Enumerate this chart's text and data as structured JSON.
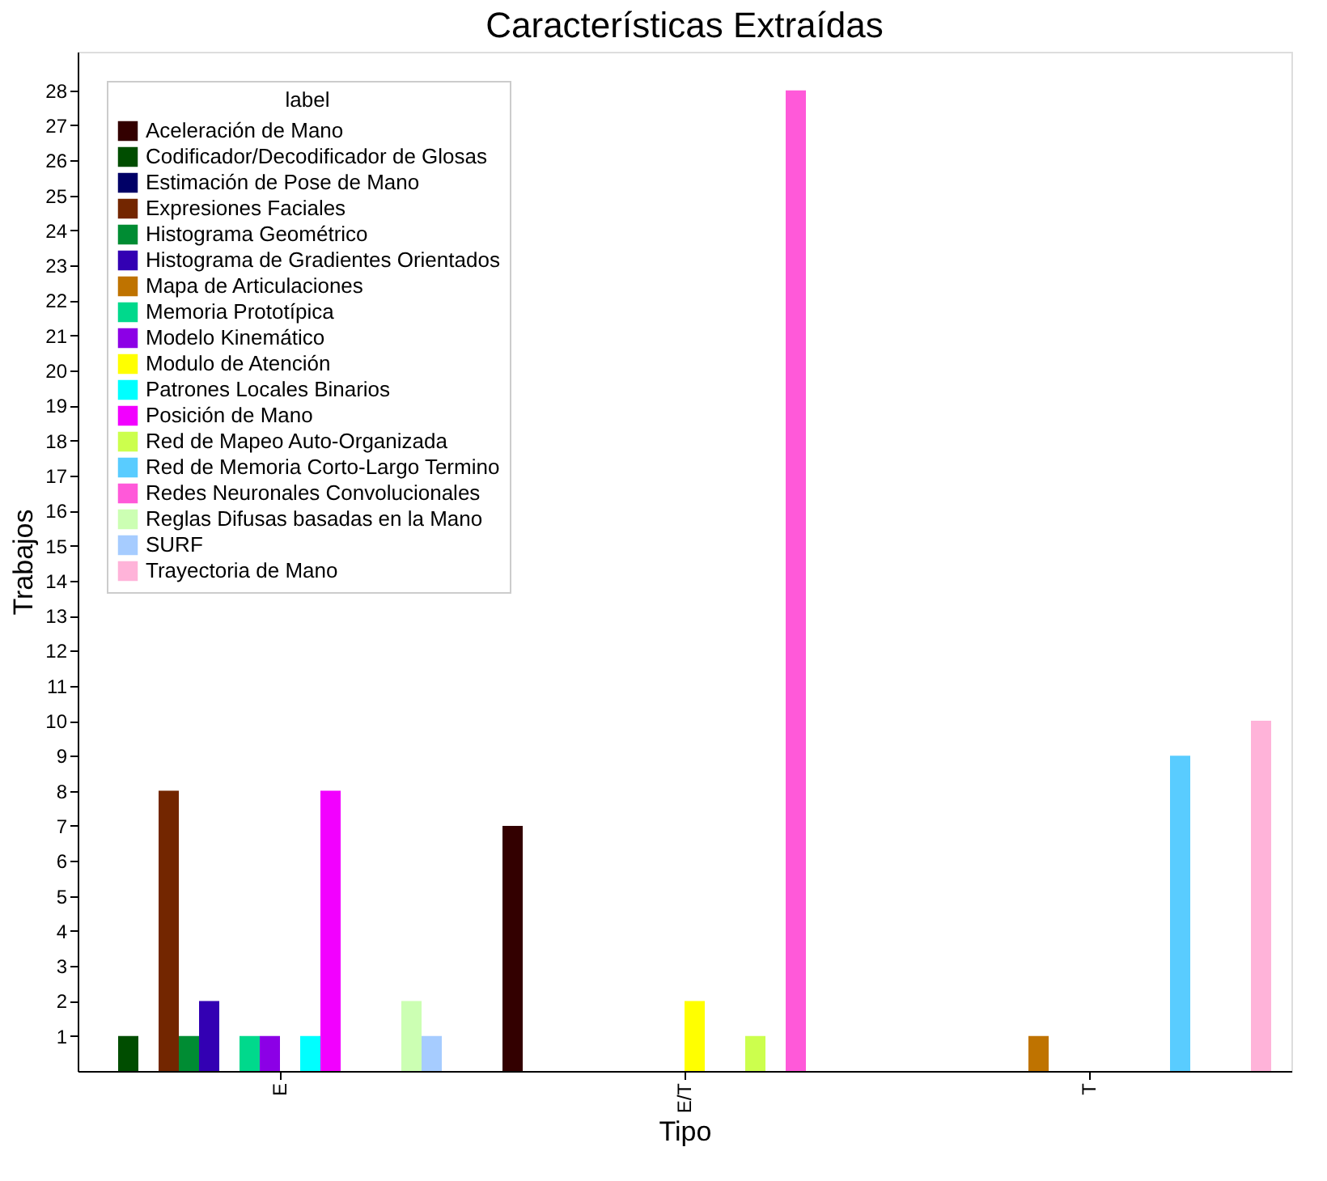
{
  "chart_data": {
    "type": "bar",
    "title": "Características Extraídas",
    "xlabel": "Tipo",
    "ylabel": "Trabajos",
    "legend_title": "label",
    "legend": "top left",
    "grid": false,
    "categories": [
      "E",
      "E/T",
      "T"
    ],
    "ylim": [
      0,
      29.1
    ],
    "yticks": [
      1,
      2,
      3,
      4,
      5,
      6,
      7,
      8,
      9,
      10,
      11,
      12,
      13,
      14,
      15,
      16,
      17,
      18,
      19,
      20,
      21,
      22,
      23,
      24,
      25,
      26,
      27,
      28
    ],
    "series": [
      {
        "name": "Aceleración de Mano",
        "color": "#330000",
        "values": [
          null,
          7,
          null
        ]
      },
      {
        "name": "Codificador/Decodificador de Glosas",
        "color": "#004d00",
        "values": [
          1,
          null,
          null
        ]
      },
      {
        "name": "Estimación de Pose de Mano",
        "color": "#000066",
        "values": [
          null,
          null,
          null
        ]
      },
      {
        "name": "Expresiones Faciales",
        "color": "#732600",
        "values": [
          8,
          null,
          null
        ]
      },
      {
        "name": "Histograma Geométrico",
        "color": "#008c33",
        "values": [
          1,
          null,
          null
        ]
      },
      {
        "name": "Histograma de Gradientes Orientados",
        "color": "#3300b3",
        "values": [
          2,
          null,
          null
        ]
      },
      {
        "name": "Mapa de Articulaciones",
        "color": "#bf7300",
        "values": [
          null,
          null,
          1
        ]
      },
      {
        "name": "Memoria Prototípica",
        "color": "#00d98c",
        "values": [
          1,
          null,
          null
        ]
      },
      {
        "name": "Modelo Kinemático",
        "color": "#8c00e6",
        "values": [
          1,
          null,
          null
        ]
      },
      {
        "name": "Modulo de Atención",
        "color": "#ffff00",
        "values": [
          null,
          2,
          null
        ]
      },
      {
        "name": "Patrones Locales Binarios",
        "color": "#00ffff",
        "values": [
          1,
          null,
          null
        ]
      },
      {
        "name": "Posición de Mano",
        "color": "#f200ff",
        "values": [
          8,
          null,
          null
        ]
      },
      {
        "name": "Red de Mapeo Auto-Organizada",
        "color": "#ccff4d",
        "values": [
          null,
          1,
          null
        ]
      },
      {
        "name": "Red de Memoria Corto-Largo Termino",
        "color": "#59ccff",
        "values": [
          null,
          null,
          9
        ]
      },
      {
        "name": "Redes Neuronales Convolucionales",
        "color": "#ff59d9",
        "values": [
          null,
          28,
          null
        ]
      },
      {
        "name": "Reglas Difusas basadas en la Mano",
        "color": "#ccffb3",
        "values": [
          2,
          null,
          null
        ]
      },
      {
        "name": "SURF",
        "color": "#a6ccff",
        "values": [
          1,
          null,
          null
        ]
      },
      {
        "name": "Trayectoria de Mano",
        "color": "#ffb3d9",
        "values": [
          null,
          null,
          10
        ]
      }
    ]
  }
}
